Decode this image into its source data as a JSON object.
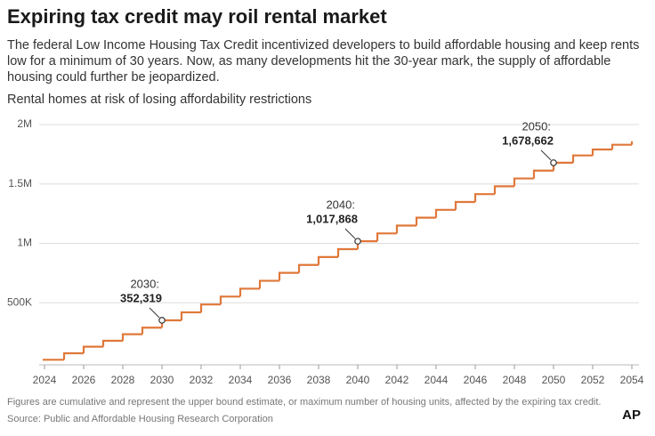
{
  "chart_data": {
    "type": "step",
    "title": "Expiring tax credit may roil rental market",
    "subtitle": "The federal Low Income Housing Tax Credit incentivized developers to build affordable housing and keep rents low for a minimum of 30 years. Now, as many developments hit the 30-year mark, the supply of affordable housing could further be jeopardized.",
    "chart_title": "Rental homes at risk of losing affordability restrictions",
    "note": "Figures are cumulative and represent the upper bound estimate, or maximum number of housing units, affected by the expiring tax credit.",
    "source": "Source: Public and Affordable Housing Research Corporation",
    "logo": "AP",
    "color": "#e0783a",
    "x": [
      2024,
      2025,
      2026,
      2027,
      2028,
      2029,
      2030,
      2031,
      2032,
      2033,
      2034,
      2035,
      2036,
      2037,
      2038,
      2039,
      2040,
      2041,
      2042,
      2043,
      2044,
      2045,
      2046,
      2047,
      2048,
      2049,
      2050,
      2051,
      2052,
      2053,
      2054
    ],
    "values": [
      20000,
      75000,
      130000,
      180000,
      235000,
      290000,
      352319,
      418874,
      485429,
      551984,
      618539,
      685094,
      751649,
      818204,
      884759,
      951314,
      1017868,
      1083947,
      1150026,
      1216105,
      1282184,
      1348263,
      1414342,
      1480421,
      1546500,
      1612579,
      1678662,
      1740000,
      1790000,
      1830000,
      1860000
    ],
    "annotations": [
      {
        "label": "2030:",
        "index": 6,
        "value_label": "352,319"
      },
      {
        "label": "2040:",
        "index": 16,
        "value_label": "1,017,868"
      },
      {
        "label": "2050:",
        "index": 26,
        "value_label": "1,678,662"
      }
    ],
    "xlim": [
      2024,
      2054
    ],
    "xticks": [
      2024,
      2026,
      2028,
      2030,
      2032,
      2034,
      2036,
      2038,
      2040,
      2042,
      2044,
      2046,
      2048,
      2050,
      2052,
      2054
    ],
    "ylim": [
      0,
      2000000
    ],
    "yticks": [
      {
        "value": 500000,
        "label": "500K"
      },
      {
        "value": 1000000,
        "label": "1M"
      },
      {
        "value": 1500000,
        "label": "1.5M"
      },
      {
        "value": 2000000,
        "label": "2M"
      }
    ],
    "grid": true
  }
}
